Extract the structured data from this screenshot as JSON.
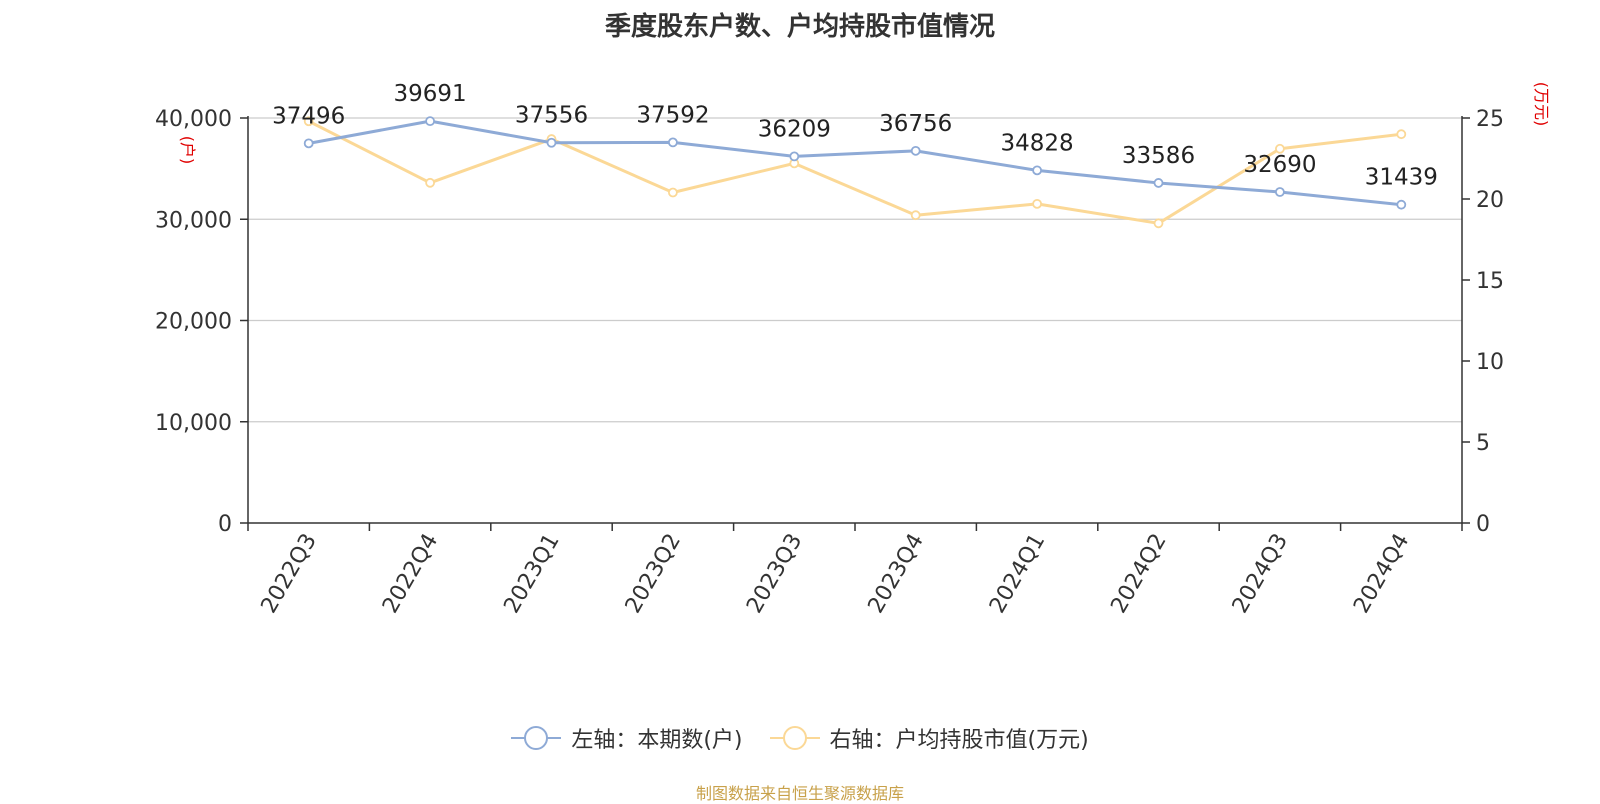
{
  "title": "季度股东户数、户均持股市值情况",
  "source": "制图数据来自恒生聚源数据库",
  "colors": {
    "series_left": "#8eaad6",
    "series_right": "#fbd896",
    "axis_unit": "#e00000",
    "grid": "#cccccc",
    "axis": "#333333"
  },
  "chart_data": {
    "type": "line",
    "title": "季度股东户数、户均持股市值情况",
    "categories": [
      "2022Q3",
      "2022Q4",
      "2023Q1",
      "2023Q2",
      "2023Q3",
      "2023Q4",
      "2024Q1",
      "2024Q2",
      "2024Q3",
      "2024Q4"
    ],
    "series": [
      {
        "name": "左轴：本期数(户)",
        "axis": "left",
        "values": [
          37496,
          39691,
          37556,
          37592,
          36209,
          36756,
          34828,
          33586,
          32690,
          31439
        ],
        "labels": [
          "37496",
          "39691",
          "37556",
          "37592",
          "36209",
          "36756",
          "34828",
          "33586",
          "32690",
          "31439"
        ]
      },
      {
        "name": "右轴：户均持股市值(万元)",
        "axis": "right",
        "values": [
          24.8,
          21.0,
          23.7,
          20.4,
          22.2,
          19.0,
          19.7,
          18.5,
          23.1,
          24.0
        ]
      }
    ],
    "y_left": {
      "label": "(户)",
      "ylim": [
        0,
        40000
      ],
      "ticks": [
        "0",
        "10,000",
        "20,000",
        "30,000",
        "40,000"
      ],
      "tick_values": [
        0,
        10000,
        20000,
        30000,
        40000
      ]
    },
    "y_right": {
      "label": "(万元)",
      "ylim": [
        0,
        25
      ],
      "ticks": [
        "0",
        "5",
        "10",
        "15",
        "20",
        "25"
      ],
      "tick_values": [
        0,
        5,
        10,
        15,
        20,
        25
      ]
    },
    "grid": true,
    "legend": "bottom-center"
  }
}
